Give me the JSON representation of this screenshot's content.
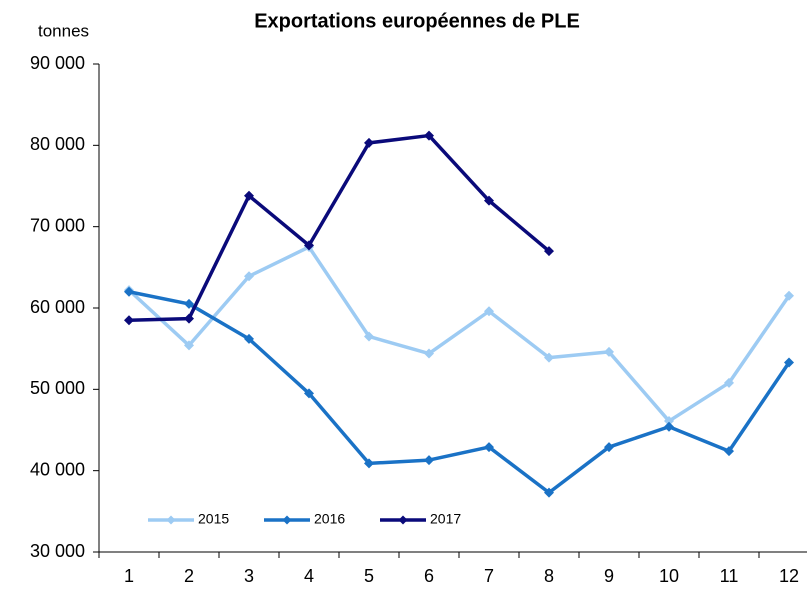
{
  "chart_data": {
    "type": "line",
    "title": "Exportations européennes de PLE",
    "y_label": "tonnes",
    "categories": [
      "1",
      "2",
      "3",
      "4",
      "5",
      "6",
      "7",
      "8",
      "9",
      "10",
      "11",
      "12"
    ],
    "series": [
      {
        "name": "2015",
        "color": "#9dcbf3",
        "values": [
          62200,
          55400,
          63900,
          67500,
          56500,
          54400,
          59600,
          53900,
          54600,
          46100,
          50800,
          61500
        ]
      },
      {
        "name": "2016",
        "color": "#1a72c6",
        "values": [
          62000,
          60500,
          56200,
          49500,
          40900,
          41300,
          42900,
          37300,
          42900,
          45400,
          42400,
          53300
        ]
      },
      {
        "name": "2017",
        "color": "#0a0a7a",
        "values": [
          58500,
          58700,
          73800,
          67700,
          80300,
          81200,
          73200,
          67000,
          null,
          null,
          null,
          null
        ]
      }
    ],
    "ylim": [
      30000,
      90000
    ],
    "yticks": [
      {
        "value": 30000,
        "label": "30 000"
      },
      {
        "value": 40000,
        "label": "40 000"
      },
      {
        "value": 50000,
        "label": "50 000"
      },
      {
        "value": 60000,
        "label": "60 000"
      },
      {
        "value": 70000,
        "label": "70 000"
      },
      {
        "value": 80000,
        "label": "80 000"
      },
      {
        "value": 90000,
        "label": "90 000"
      }
    ],
    "grid": false,
    "legend": "lower left"
  }
}
